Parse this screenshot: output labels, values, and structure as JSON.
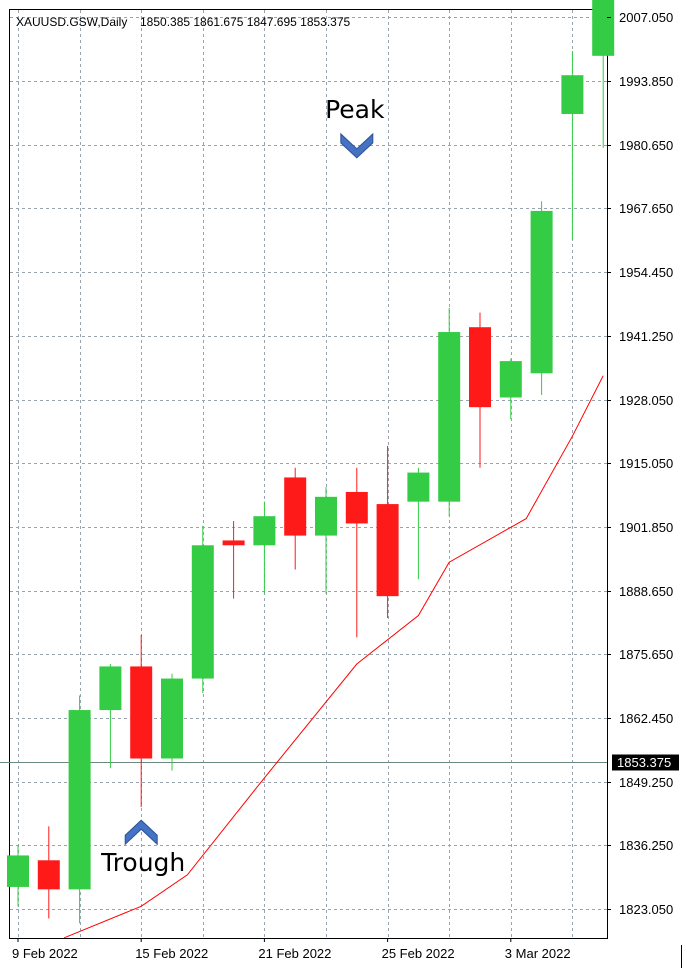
{
  "chart_data": {
    "type": "candlestick",
    "title": "XAUUSD.GSW,Daily",
    "ohlc_header": "1850.385 1861.675 1847.695 1853.375",
    "current_price": 1853.375,
    "current_price_label": "1853.375",
    "ylim": [
      1816.0,
      2016.0
    ],
    "y_ticks": [
      2007.05,
      1993.85,
      1980.65,
      1967.65,
      1954.45,
      1941.25,
      1928.05,
      1915.05,
      1901.85,
      1888.65,
      1875.65,
      1862.45,
      1849.25,
      1836.25,
      1823.05
    ],
    "y_tick_labels": [
      "2007.050",
      "1993.850",
      "1980.650",
      "1967.650",
      "1954.450",
      "1941.250",
      "1928.050",
      "1915.050",
      "1901.850",
      "1888.650",
      "1875.650",
      "1862.450",
      "1849.250",
      "1836.250",
      "1823.050"
    ],
    "x_tick_labels": [
      {
        "bar": 0,
        "label": "9 Feb 2022"
      },
      {
        "bar": 4,
        "label": "15 Feb 2022"
      },
      {
        "bar": 8,
        "label": "21 Feb 2022"
      },
      {
        "bar": 12,
        "label": "25 Feb 2022"
      },
      {
        "bar": 16,
        "label": "3 Mar 2022"
      }
    ],
    "grid": true,
    "colors": {
      "up": "#33cc44",
      "down": "#ff1a1a",
      "ma": "#ff0000",
      "grid": "#9aa4ae",
      "price_line": "#6a8a80",
      "price_tag": "#000000",
      "arrow": "#4472c4"
    },
    "candles": [
      {
        "o": 1827.5,
        "h": 1836.0,
        "l": 1823.5,
        "c": 1834.0
      },
      {
        "o": 1833.0,
        "h": 1840.0,
        "l": 1821.0,
        "c": 1827.0
      },
      {
        "o": 1827.0,
        "h": 1867.0,
        "l": 1820.0,
        "c": 1864.0
      },
      {
        "o": 1864.0,
        "h": 1873.5,
        "l": 1852.0,
        "c": 1873.0
      },
      {
        "o": 1873.0,
        "h": 1879.5,
        "l": 1844.0,
        "c": 1854.0
      },
      {
        "o": 1854.0,
        "h": 1871.5,
        "l": 1851.5,
        "c": 1870.5
      },
      {
        "o": 1870.5,
        "h": 1902.0,
        "l": 1867.5,
        "c": 1898.0
      },
      {
        "o": 1899.0,
        "h": 1903.0,
        "l": 1887.0,
        "c": 1898.0
      },
      {
        "o": 1898.0,
        "h": 1907.0,
        "l": 1888.0,
        "c": 1904.0
      },
      {
        "o": 1912.0,
        "h": 1914.0,
        "l": 1893.0,
        "c": 1900.0
      },
      {
        "o": 1900.0,
        "h": 1910.0,
        "l": 1888.0,
        "c": 1908.0
      },
      {
        "o": 1909.0,
        "h": 1914.0,
        "l": 1879.0,
        "c": 1902.5
      },
      {
        "o": 1906.5,
        "h": 1918.5,
        "l": 1883.0,
        "c": 1887.5
      },
      {
        "o": 1907.0,
        "h": 1914.0,
        "l": 1891.0,
        "c": 1913.0
      },
      {
        "o": 1907.0,
        "h": 1947.0,
        "l": 1904.0,
        "c": 1942.0
      },
      {
        "o": 1943.0,
        "h": 1946.0,
        "l": 1914.0,
        "c": 1926.5
      },
      {
        "o": 1928.5,
        "h": 1936.5,
        "l": 1924.0,
        "c": 1936.0
      },
      {
        "o": 1933.5,
        "h": 1969.0,
        "l": 1929.0,
        "c": 1967.0
      },
      {
        "o": 1987.0,
        "h": 2000.0,
        "l": 1961.0,
        "c": 1995.0
      },
      {
        "o": 1999.0,
        "h": 2012.0,
        "l": 1980.0,
        "c": 2011.0
      }
    ],
    "moving_average": [
      {
        "bar": 1.5,
        "value": 1817.0
      },
      {
        "bar": 4.0,
        "value": 1823.5
      },
      {
        "bar": 5.5,
        "value": 1830.0
      },
      {
        "bar": 8.0,
        "value": 1850.0
      },
      {
        "bar": 11.0,
        "value": 1873.5
      },
      {
        "bar": 13.0,
        "value": 1883.5
      },
      {
        "bar": 14.0,
        "value": 1894.5
      },
      {
        "bar": 16.5,
        "value": 1903.5
      },
      {
        "bar": 18.0,
        "value": 1920.5
      },
      {
        "bar": 19.0,
        "value": 1933.0
      }
    ],
    "annotations": [
      {
        "text": "Peak",
        "bar": 11,
        "value": 1976.5,
        "direction": "down"
      },
      {
        "text": "Trough",
        "bar": 4,
        "value": 1842.5,
        "direction": "up"
      }
    ]
  }
}
